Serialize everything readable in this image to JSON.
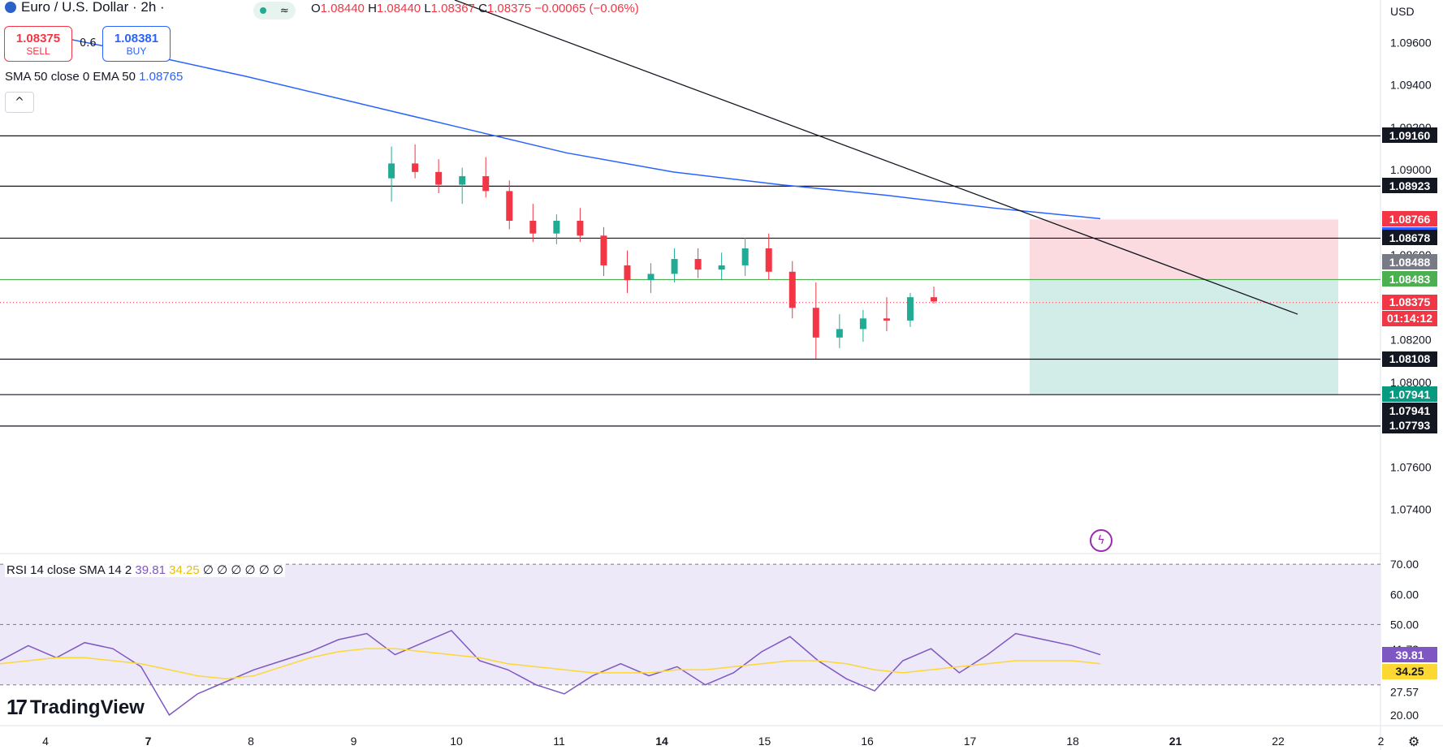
{
  "header": {
    "symbol_title": "Euro / U.S. Dollar · 2h ·",
    "ohlc": {
      "open_label": "O",
      "open": "1.08440",
      "high_label": "H",
      "high": "1.08440",
      "low_label": "L",
      "low": "1.08367",
      "close_label": "C",
      "close": "1.08375",
      "change": "−0.00065 (−0.06%)"
    },
    "wave_icon": "≈"
  },
  "trade": {
    "sell_price": "1.08375",
    "sell_label": "SELL",
    "spread": "0.6",
    "buy_price": "1.08381",
    "buy_label": "BUY"
  },
  "indicator_legend": {
    "label": "SMA 50 close 0 EMA 50",
    "value": "1.08765",
    "collapse_icon": "^"
  },
  "rsi_legend": {
    "label": "RSI 14 close SMA 14 2",
    "rsi": "39.81",
    "sma": "34.25",
    "extras": "∅ ∅ ∅ ∅ ∅ ∅"
  },
  "axis": {
    "currency": "USD"
  },
  "branding": {
    "logo_mark": "17",
    "logo_text": "TradingView"
  },
  "colors": {
    "up": "#22ab94",
    "down": "#f23645",
    "ema": "#2962ff",
    "rsi": "#7e57c2",
    "rsi_sma": "#fdd835",
    "stop_zone": "#fcdbe0",
    "target_zone": "#d2ede7",
    "green_line": "#4caf50"
  },
  "chart_data": [
    {
      "type": "candlestick",
      "title": "Euro / U.S. Dollar · 2h",
      "x_ticks": [
        "4",
        "7",
        "8",
        "9",
        "10",
        "11",
        "14",
        "15",
        "16",
        "17",
        "18",
        "21",
        "22",
        "2"
      ],
      "y_ticks": [
        1.096,
        1.094,
        1.092,
        1.09,
        1.086,
        1.082,
        1.08,
        1.076,
        1.074
      ],
      "ylim": [
        1.072,
        1.098
      ],
      "candles": [
        [
          1.0896,
          1.0911,
          1.0885,
          1.0903
        ],
        [
          1.0903,
          1.0912,
          1.0896,
          1.0899
        ],
        [
          1.0899,
          1.0905,
          1.0889,
          1.0893
        ],
        [
          1.0893,
          1.0901,
          1.0884,
          1.0897
        ],
        [
          1.0897,
          1.0906,
          1.0887,
          1.089
        ],
        [
          1.089,
          1.0895,
          1.0872,
          1.0876
        ],
        [
          1.0876,
          1.0884,
          1.0866,
          1.087
        ],
        [
          1.087,
          1.0879,
          1.0865,
          1.0876
        ],
        [
          1.0876,
          1.0882,
          1.0866,
          1.0869
        ],
        [
          1.0869,
          1.0873,
          1.085,
          1.0855
        ],
        [
          1.0855,
          1.0862,
          1.0842,
          1.0848
        ],
        [
          1.0848,
          1.0856,
          1.0842,
          1.0851
        ],
        [
          1.0851,
          1.0863,
          1.0847,
          1.0858
        ],
        [
          1.0858,
          1.0863,
          1.0849,
          1.0853
        ],
        [
          1.0853,
          1.0861,
          1.0848,
          1.0855
        ],
        [
          1.0855,
          1.0868,
          1.085,
          1.0863
        ],
        [
          1.0863,
          1.087,
          1.0848,
          1.0852
        ],
        [
          1.0852,
          1.0857,
          1.083,
          1.0835
        ],
        [
          1.0835,
          1.0847,
          1.0811,
          1.0821
        ],
        [
          1.0821,
          1.0832,
          1.0816,
          1.0825
        ],
        [
          1.0825,
          1.0834,
          1.0819,
          1.083
        ],
        [
          1.083,
          1.084,
          1.0824,
          1.0829
        ],
        [
          1.0829,
          1.0842,
          1.0826,
          1.084
        ],
        [
          1.084,
          1.0845,
          1.0837,
          1.0838
        ]
      ],
      "series": [
        {
          "name": "EMA 50",
          "values": [
            1.0965,
            1.0955,
            1.0944,
            1.0932,
            1.092,
            1.0908,
            1.0899,
            1.0893,
            1.0888,
            1.0882,
            1.0877
          ]
        }
      ],
      "trendline": {
        "start": [
          1.098
        ],
        "end": [
          1.0832
        ]
      },
      "levels": [
        1.0916,
        1.08923,
        1.08678,
        1.08483,
        1.08108,
        1.07941,
        1.07793
      ],
      "price_tags": [
        {
          "text": "1.09160",
          "bg": "#131722"
        },
        {
          "text": "1.08923",
          "bg": "#131722"
        },
        {
          "text": "1.08766",
          "bg": "#f23645"
        },
        {
          "text": "1.08765",
          "bg": "#2962ff"
        },
        {
          "text": "1.08678",
          "bg": "#131722"
        },
        {
          "text": "1.08488",
          "bg": "#787b86"
        },
        {
          "text": "1.08483",
          "bg": "#4caf50"
        },
        {
          "text": "1.08375",
          "bg": "#f23645"
        },
        {
          "text": "01:14:12",
          "bg": "#f23645"
        },
        {
          "text": "1.08108",
          "bg": "#131722"
        },
        {
          "text": "1.07941",
          "bg": "#089981"
        },
        {
          "text": "1.07941",
          "bg": "#131722"
        },
        {
          "text": "1.07793",
          "bg": "#131722"
        }
      ],
      "position": {
        "entry": 1.08483,
        "stop": 1.08766,
        "target": 1.07941
      }
    },
    {
      "type": "line",
      "title": "RSI 14 close SMA 14 2",
      "y_ticks": [
        70.0,
        60.0,
        50.0,
        41.73,
        27.57,
        20.0
      ],
      "ylim": [
        17,
        73
      ],
      "bands": [
        70,
        50,
        30
      ],
      "series": [
        {
          "name": "RSI",
          "values": [
            38,
            43,
            39,
            44,
            42,
            36,
            20,
            27,
            31,
            35,
            38,
            41,
            45,
            47,
            40,
            44,
            48,
            38,
            35,
            30,
            27,
            33,
            37,
            33,
            36,
            30,
            34,
            41,
            46,
            38,
            32,
            28,
            38,
            42,
            34,
            40,
            47,
            45,
            43,
            40
          ]
        },
        {
          "name": "SMA",
          "values": [
            37,
            38,
            39,
            39,
            38,
            37,
            35,
            33,
            32,
            33,
            36,
            39,
            41,
            42,
            42,
            41,
            40,
            39,
            37,
            36,
            35,
            34,
            34,
            34,
            35,
            35,
            36,
            37,
            38,
            38,
            37,
            35,
            34,
            35,
            36,
            37,
            38,
            38,
            38,
            37
          ]
        }
      ],
      "value_tags": [
        {
          "text": "39.81",
          "bg": "#7e57c2"
        },
        {
          "text": "34.25",
          "bg": "#fdd835"
        }
      ]
    }
  ]
}
